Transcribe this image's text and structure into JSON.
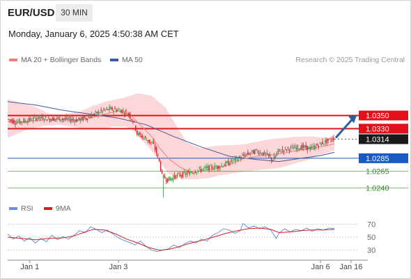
{
  "header": {
    "symbol": "EUR/USD",
    "timeframe": "30 MIN",
    "timestamp": "Monday, January 6, 2025 4:50:38 AM CET",
    "credit": "Research © 2025 Trading Central"
  },
  "colors": {
    "ma20": "#ef7d7d",
    "ma50": "#3e5a9c",
    "band_fill": "#f9c9cd",
    "resistance": "#e3101c",
    "pivot": "#1a58c6",
    "support": "#3a8a2a",
    "current": "#1a1a1a",
    "arrow": "#2b5fa5",
    "rsi": "#6b8ed6",
    "rsi_ma": "#d62020",
    "candle_up": "#3c9a4a",
    "candle_down": "#c62828"
  },
  "chart_data": [
    {
      "type": "candlestick",
      "legend": [
        {
          "label": "MA 20 + Bollinger Bands",
          "color": "#ef7d7d"
        },
        {
          "label": "MA 50",
          "color": "#3e5a9c"
        }
      ],
      "ylim": [
        1.0218,
        1.0409
      ],
      "levels": [
        {
          "value": 1.035,
          "label": "1.0350",
          "kind": "resistance"
        },
        {
          "value": 1.033,
          "label": "1.0330",
          "kind": "resistance"
        },
        {
          "value": 1.0314,
          "label": "1.0314",
          "kind": "current"
        },
        {
          "value": 1.0285,
          "label": "1.0285",
          "kind": "pivot"
        },
        {
          "value": 1.0265,
          "label": "1.0265",
          "kind": "support"
        },
        {
          "value": 1.024,
          "label": "1.0240",
          "kind": "support"
        }
      ],
      "price_path": [
        [
          0,
          1.0345
        ],
        [
          6,
          1.034
        ],
        [
          14,
          1.0342
        ],
        [
          22,
          1.0347
        ],
        [
          30,
          1.0345
        ],
        [
          40,
          1.0345
        ],
        [
          50,
          1.0343
        ],
        [
          58,
          1.0347
        ],
        [
          66,
          1.0355
        ],
        [
          74,
          1.036
        ],
        [
          82,
          1.0358
        ],
        [
          88,
          1.0352
        ],
        [
          92,
          1.0338
        ],
        [
          94,
          1.0322
        ],
        [
          100,
          1.0315
        ],
        [
          106,
          1.0305
        ],
        [
          110,
          1.028
        ],
        [
          112,
          1.0258
        ],
        [
          116,
          1.0252
        ],
        [
          122,
          1.0258
        ],
        [
          130,
          1.0262
        ],
        [
          138,
          1.0267
        ],
        [
          144,
          1.027
        ],
        [
          152,
          1.0272
        ],
        [
          160,
          1.0278
        ],
        [
          166,
          1.0284
        ],
        [
          172,
          1.029
        ],
        [
          180,
          1.0296
        ],
        [
          188,
          1.029
        ],
        [
          192,
          1.0282
        ],
        [
          196,
          1.0296
        ],
        [
          204,
          1.03
        ],
        [
          212,
          1.0302
        ],
        [
          220,
          1.03
        ],
        [
          226,
          1.0307
        ],
        [
          232,
          1.0312
        ],
        [
          236,
          1.0316
        ]
      ],
      "ma20": [
        [
          0,
          1.0341
        ],
        [
          10,
          1.034
        ],
        [
          20,
          1.0342
        ],
        [
          30,
          1.0344
        ],
        [
          40,
          1.0344
        ],
        [
          50,
          1.0343
        ],
        [
          60,
          1.0346
        ],
        [
          70,
          1.0352
        ],
        [
          80,
          1.0357
        ],
        [
          88,
          1.0352
        ],
        [
          96,
          1.0335
        ],
        [
          104,
          1.0318
        ],
        [
          110,
          1.03
        ],
        [
          116,
          1.0285
        ],
        [
          124,
          1.0272
        ],
        [
          132,
          1.0264
        ],
        [
          140,
          1.0266
        ],
        [
          150,
          1.0269
        ],
        [
          160,
          1.0275
        ],
        [
          170,
          1.0284
        ],
        [
          180,
          1.0288
        ],
        [
          190,
          1.029
        ],
        [
          200,
          1.0293
        ],
        [
          210,
          1.0297
        ],
        [
          220,
          1.03
        ],
        [
          230,
          1.0304
        ],
        [
          236,
          1.0307
        ]
      ],
      "band_upper": [
        [
          0,
          1.0375
        ],
        [
          8,
          1.037
        ],
        [
          20,
          1.0363
        ],
        [
          30,
          1.0353
        ],
        [
          40,
          1.0352
        ],
        [
          52,
          1.0356
        ],
        [
          62,
          1.0365
        ],
        [
          72,
          1.0372
        ],
        [
          84,
          1.0377
        ],
        [
          94,
          1.0384
        ],
        [
          104,
          1.038
        ],
        [
          114,
          1.0362
        ],
        [
          122,
          1.0334
        ],
        [
          130,
          1.0308
        ],
        [
          140,
          1.03
        ],
        [
          150,
          1.0304
        ],
        [
          160,
          1.0305
        ],
        [
          170,
          1.0306
        ],
        [
          180,
          1.031
        ],
        [
          190,
          1.0314
        ],
        [
          200,
          1.0316
        ],
        [
          210,
          1.0318
        ],
        [
          220,
          1.0318
        ],
        [
          230,
          1.0316
        ],
        [
          236,
          1.0314
        ]
      ],
      "band_lower": [
        [
          236,
          1.0297
        ],
        [
          226,
          1.029
        ],
        [
          216,
          1.0282
        ],
        [
          206,
          1.0276
        ],
        [
          196,
          1.027
        ],
        [
          186,
          1.0268
        ],
        [
          176,
          1.0266
        ],
        [
          166,
          1.0263
        ],
        [
          156,
          1.026
        ],
        [
          146,
          1.0255
        ],
        [
          136,
          1.0253
        ],
        [
          126,
          1.0253
        ],
        [
          116,
          1.0262
        ],
        [
          110,
          1.0279
        ],
        [
          104,
          1.0296
        ],
        [
          98,
          1.031
        ],
        [
          92,
          1.0325
        ],
        [
          86,
          1.0333
        ],
        [
          76,
          1.0333
        ],
        [
          66,
          1.0329
        ],
        [
          56,
          1.033
        ],
        [
          46,
          1.0333
        ],
        [
          36,
          1.0336
        ],
        [
          26,
          1.0334
        ],
        [
          16,
          1.033
        ],
        [
          8,
          1.0323
        ],
        [
          0,
          1.0316
        ]
      ],
      "ma50": [
        [
          0,
          1.0371
        ],
        [
          20,
          1.0366
        ],
        [
          40,
          1.0358
        ],
        [
          60,
          1.0352
        ],
        [
          80,
          1.0346
        ],
        [
          100,
          1.0336
        ],
        [
          120,
          1.0318
        ],
        [
          140,
          1.0302
        ],
        [
          160,
          1.0288
        ],
        [
          180,
          1.0283
        ],
        [
          196,
          1.028
        ],
        [
          212,
          1.0285
        ],
        [
          226,
          1.0289
        ],
        [
          236,
          1.0294
        ]
      ]
    },
    {
      "type": "line",
      "legend": [
        {
          "label": "RSI",
          "color": "#6b8ed6"
        },
        {
          "label": "9MA",
          "color": "#d62020"
        }
      ],
      "ylim": [
        19,
        80
      ],
      "yticks": [
        {
          "value": 70,
          "label": "70"
        },
        {
          "value": 50,
          "label": "50"
        },
        {
          "value": 30,
          "label": "30"
        }
      ],
      "rsi": [
        [
          0,
          55
        ],
        [
          4,
          47
        ],
        [
          8,
          52
        ],
        [
          12,
          44
        ],
        [
          16,
          49
        ],
        [
          20,
          41
        ],
        [
          24,
          48
        ],
        [
          28,
          43
        ],
        [
          32,
          53
        ],
        [
          36,
          46
        ],
        [
          40,
          51
        ],
        [
          44,
          47
        ],
        [
          48,
          53
        ],
        [
          52,
          60
        ],
        [
          56,
          57
        ],
        [
          60,
          66
        ],
        [
          64,
          62
        ],
        [
          68,
          57
        ],
        [
          72,
          61
        ],
        [
          76,
          55
        ],
        [
          80,
          49
        ],
        [
          84,
          45
        ],
        [
          88,
          42
        ],
        [
          92,
          38
        ],
        [
          96,
          44
        ],
        [
          100,
          36
        ],
        [
          104,
          30
        ],
        [
          108,
          28
        ],
        [
          112,
          30
        ],
        [
          116,
          32
        ],
        [
          120,
          38
        ],
        [
          124,
          34
        ],
        [
          128,
          40
        ],
        [
          132,
          44
        ],
        [
          136,
          41
        ],
        [
          140,
          47
        ],
        [
          144,
          44
        ],
        [
          148,
          53
        ],
        [
          152,
          57
        ],
        [
          156,
          63
        ],
        [
          160,
          61
        ],
        [
          164,
          56
        ],
        [
          168,
          60
        ],
        [
          170,
          71
        ],
        [
          174,
          64
        ],
        [
          178,
          67
        ],
        [
          182,
          63
        ],
        [
          186,
          66
        ],
        [
          190,
          61
        ],
        [
          194,
          48
        ],
        [
          196,
          56
        ],
        [
          200,
          63
        ],
        [
          204,
          58
        ],
        [
          208,
          62
        ],
        [
          212,
          60
        ],
        [
          216,
          64
        ],
        [
          220,
          59
        ],
        [
          224,
          63
        ],
        [
          228,
          61
        ],
        [
          232,
          64
        ],
        [
          236,
          63
        ]
      ],
      "rsi_ma": [
        [
          0,
          50
        ],
        [
          10,
          48
        ],
        [
          20,
          46
        ],
        [
          30,
          48
        ],
        [
          40,
          49
        ],
        [
          48,
          52
        ],
        [
          56,
          58
        ],
        [
          62,
          62
        ],
        [
          70,
          61
        ],
        [
          78,
          55
        ],
        [
          86,
          47
        ],
        [
          94,
          41
        ],
        [
          102,
          34
        ],
        [
          110,
          30
        ],
        [
          118,
          32
        ],
        [
          126,
          37
        ],
        [
          134,
          42
        ],
        [
          142,
          46
        ],
        [
          150,
          51
        ],
        [
          158,
          56
        ],
        [
          166,
          60
        ],
        [
          174,
          63
        ],
        [
          182,
          64
        ],
        [
          190,
          62
        ],
        [
          196,
          57
        ],
        [
          204,
          58
        ],
        [
          212,
          60
        ],
        [
          220,
          61
        ],
        [
          228,
          61
        ],
        [
          236,
          62
        ]
      ],
      "xtick_labels": [
        {
          "label": "Jan 1",
          "bar": 16
        },
        {
          "label": "Jan 3",
          "bar": 80
        },
        {
          "label": "Jan 6",
          "bar": 226
        },
        {
          "label": "Jan 16",
          "bar": 248
        }
      ]
    }
  ]
}
